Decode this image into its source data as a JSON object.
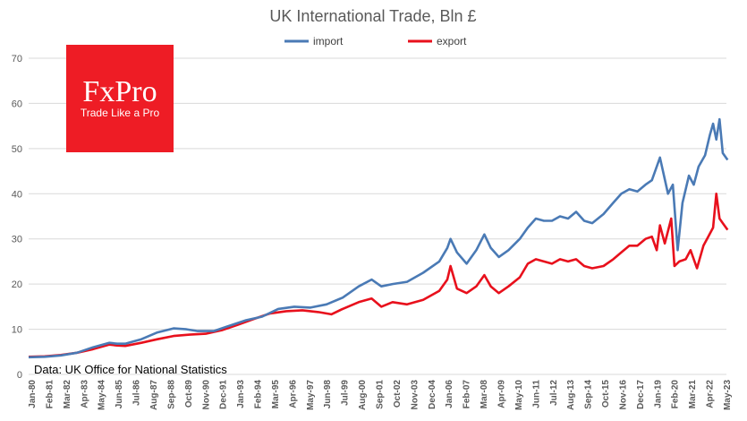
{
  "colors": {
    "import": "#4a7ab5",
    "export": "#e8101c",
    "grid": "#d9d9d9",
    "brand": "#ee1c25"
  },
  "logo": {
    "main_text": "FxPro",
    "tagline": "Trade Like a Pro"
  },
  "source_note": "Data: UK Office for National Statistics",
  "chart_data": {
    "type": "line",
    "title": "UK International Trade, Bln £",
    "xlabel": "",
    "ylabel": "",
    "ylim": [
      0,
      70
    ],
    "yticks": [
      0,
      10,
      20,
      30,
      40,
      50,
      60,
      70
    ],
    "grid": true,
    "legend_position": "top-center",
    "x_range": [
      "Jan-80",
      "May-23"
    ],
    "x_tick_labels": [
      "Jan-80",
      "Feb-81",
      "Mar-82",
      "Apr-83",
      "May-84",
      "Jun-85",
      "Jul-86",
      "Aug-87",
      "Sep-88",
      "Oct-89",
      "Nov-90",
      "Dec-91",
      "Jan-93",
      "Feb-94",
      "Mar-95",
      "Apr-96",
      "May-97",
      "Jun-98",
      "Jul-99",
      "Aug-00",
      "Sep-01",
      "Oct-02",
      "Nov-03",
      "Dec-04",
      "Jan-06",
      "Feb-07",
      "Mar-08",
      "Apr-09",
      "May-10",
      "Jun-11",
      "Jul-12",
      "Aug-13",
      "Sep-14",
      "Oct-15",
      "Nov-16",
      "Dec-17",
      "Jan-19",
      "Feb-20",
      "Mar-21",
      "Apr-22",
      "May-23"
    ],
    "series": [
      {
        "name": "import",
        "x": [
          1980.0,
          1981.0,
          1982.0,
          1983.0,
          1984.0,
          1985.0,
          1985.5,
          1986.0,
          1987.0,
          1988.0,
          1989.0,
          1989.8,
          1990.5,
          1991.5,
          1992.5,
          1993.5,
          1994.5,
          1995.5,
          1996.5,
          1997.5,
          1998.5,
          1999.5,
          2000.5,
          2001.3,
          2001.9,
          2002.6,
          2003.5,
          2004.5,
          2005.5,
          2006.0,
          2006.2,
          2006.6,
          2007.2,
          2007.8,
          2008.3,
          2008.7,
          2009.2,
          2009.8,
          2010.5,
          2011.0,
          2011.5,
          2012.0,
          2012.5,
          2013.0,
          2013.5,
          2014.0,
          2014.5,
          2015.0,
          2015.7,
          2016.3,
          2016.8,
          2017.3,
          2017.8,
          2018.3,
          2018.7,
          2019.0,
          2019.2,
          2019.7,
          2020.0,
          2020.3,
          2020.6,
          2021.0,
          2021.3,
          2021.6,
          2022.0,
          2022.3,
          2022.5,
          2022.7,
          2022.9,
          2023.1,
          2023.4
        ],
        "values": [
          3.8,
          3.9,
          4.2,
          4.8,
          6.0,
          7.0,
          6.8,
          6.8,
          7.8,
          9.3,
          10.2,
          10.0,
          9.6,
          9.6,
          10.8,
          12.0,
          12.8,
          14.5,
          15.0,
          14.8,
          15.5,
          17.0,
          19.5,
          21.0,
          19.5,
          20.0,
          20.5,
          22.5,
          25.0,
          28.0,
          30.0,
          27.0,
          24.5,
          27.5,
          31.0,
          28.0,
          26.0,
          27.5,
          30.0,
          32.5,
          34.5,
          34.0,
          34.0,
          35.0,
          34.5,
          36.0,
          34.0,
          33.5,
          35.5,
          38.0,
          40.0,
          41.0,
          40.5,
          42.0,
          43.0,
          46.0,
          48.0,
          40.0,
          42.0,
          27.5,
          38.0,
          44.0,
          42.0,
          46.0,
          48.5,
          53.0,
          55.5,
          52.0,
          56.5,
          49.0,
          47.5
        ]
      },
      {
        "name": "export",
        "x": [
          1980.0,
          1981.0,
          1982.0,
          1983.0,
          1984.0,
          1985.0,
          1985.5,
          1986.0,
          1987.0,
          1988.0,
          1989.0,
          1990.0,
          1991.0,
          1992.0,
          1993.0,
          1994.0,
          1995.0,
          1996.0,
          1997.0,
          1998.0,
          1998.8,
          1999.5,
          2000.5,
          2001.3,
          2001.9,
          2002.6,
          2003.5,
          2004.5,
          2005.5,
          2006.0,
          2006.2,
          2006.6,
          2007.2,
          2007.8,
          2008.3,
          2008.7,
          2009.2,
          2009.8,
          2010.5,
          2011.0,
          2011.5,
          2012.0,
          2012.5,
          2013.0,
          2013.5,
          2014.0,
          2014.5,
          2015.0,
          2015.7,
          2016.3,
          2016.8,
          2017.3,
          2017.8,
          2018.3,
          2018.7,
          2019.0,
          2019.2,
          2019.5,
          2019.9,
          2020.1,
          2020.4,
          2020.8,
          2021.1,
          2021.5,
          2021.9,
          2022.2,
          2022.5,
          2022.7,
          2022.9,
          2023.1,
          2023.4
        ],
        "values": [
          3.9,
          4.0,
          4.3,
          4.8,
          5.6,
          6.6,
          6.4,
          6.3,
          7.0,
          7.8,
          8.5,
          8.8,
          9.0,
          9.8,
          11.0,
          12.3,
          13.5,
          14.0,
          14.2,
          13.8,
          13.3,
          14.5,
          16.0,
          16.8,
          15.0,
          16.0,
          15.5,
          16.5,
          18.5,
          21.0,
          24.0,
          19.0,
          18.0,
          19.5,
          22.0,
          19.5,
          18.0,
          19.5,
          21.5,
          24.5,
          25.5,
          25.0,
          24.5,
          25.5,
          25.0,
          25.5,
          24.0,
          23.5,
          24.0,
          25.5,
          27.0,
          28.5,
          28.5,
          30.0,
          30.5,
          27.5,
          33.0,
          29.0,
          34.5,
          24.0,
          25.0,
          25.5,
          27.5,
          23.5,
          28.5,
          30.5,
          32.5,
          40.0,
          34.5,
          33.5,
          32.0
        ]
      }
    ]
  }
}
